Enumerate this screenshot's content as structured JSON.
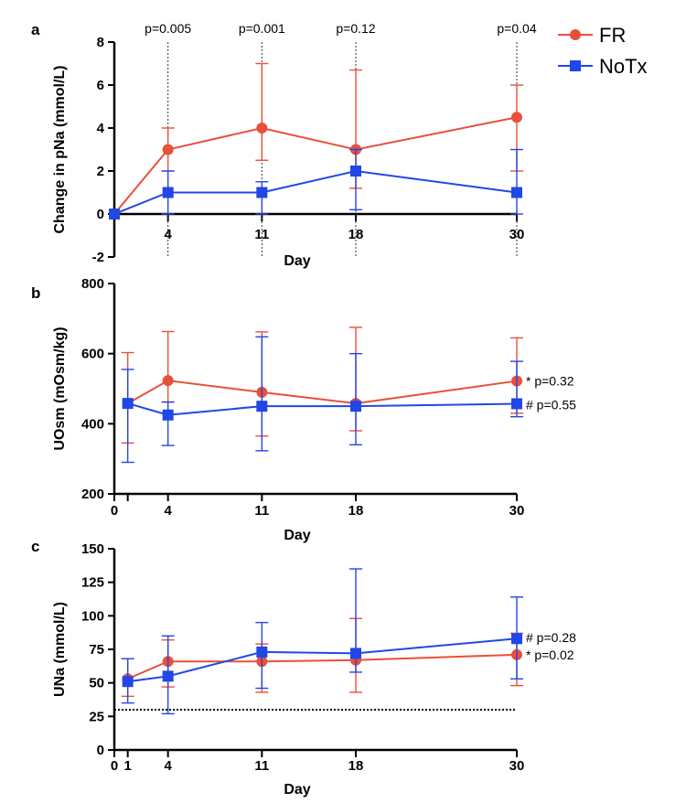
{
  "legend": [
    {
      "name": "FR",
      "color": "#e8503a",
      "marker": "circle"
    },
    {
      "name": "NoTx",
      "color": "#2147e6",
      "marker": "square"
    }
  ],
  "chart_data": [
    {
      "panel": "a",
      "type": "line",
      "xlabel": "Day",
      "ylabel": "Change in pNa (mmol/L)",
      "xlim": [
        0,
        30
      ],
      "ylim": [
        -2,
        8
      ],
      "x_ticks": [
        4,
        11,
        18,
        30
      ],
      "y_ticks": [
        -2,
        0,
        2,
        4,
        6,
        8
      ],
      "x_axis_at": 0,
      "vertical_guides": [
        4,
        11,
        18,
        30
      ],
      "top_labels": [
        {
          "x": 4,
          "text": "p=0.005"
        },
        {
          "x": 11,
          "text": "p=0.001"
        },
        {
          "x": 18,
          "text": "p=0.12"
        },
        {
          "x": 30,
          "text": "p=0.04"
        }
      ],
      "series": [
        {
          "name": "FR",
          "x": [
            0,
            4,
            11,
            18,
            30
          ],
          "y": [
            0,
            3,
            4,
            3,
            4.5
          ],
          "err_low": [
            0,
            2,
            2.5,
            1.2,
            2
          ],
          "err_high": [
            0,
            4,
            7,
            6.7,
            6
          ]
        },
        {
          "name": "NoTx",
          "x": [
            0,
            4,
            11,
            18,
            30
          ],
          "y": [
            0,
            1,
            1,
            2,
            1
          ],
          "err_low": [
            0,
            0,
            0,
            0.2,
            0
          ],
          "err_high": [
            0,
            2,
            1.5,
            3,
            3
          ]
        }
      ]
    },
    {
      "panel": "b",
      "type": "line",
      "xlabel": "Day",
      "ylabel": "UOsm (mOsm/kg)",
      "xlim": [
        0,
        30
      ],
      "ylim": [
        200,
        800
      ],
      "x_ticks": [
        0,
        1,
        4,
        11,
        18,
        30
      ],
      "x_tick_labels": [
        "0",
        "",
        "4",
        "11",
        "18",
        "30"
      ],
      "y_ticks": [
        200,
        400,
        600,
        800
      ],
      "annotations": [
        {
          "text": "* p=0.32",
          "x": 30,
          "y": 522
        },
        {
          "text": "# p=0.55",
          "x": 30,
          "y": 455
        }
      ],
      "series": [
        {
          "name": "FR",
          "x": [
            1,
            4,
            11,
            18,
            30
          ],
          "y": [
            458,
            523,
            490,
            458,
            522
          ],
          "err_low": [
            345,
            462,
            365,
            380,
            430
          ],
          "err_high": [
            603,
            663,
            662,
            675,
            645
          ]
        },
        {
          "name": "NoTx",
          "x": [
            1,
            4,
            11,
            18,
            30
          ],
          "y": [
            458,
            425,
            450,
            450,
            457
          ],
          "err_low": [
            290,
            338,
            323,
            340,
            420
          ],
          "err_high": [
            555,
            462,
            648,
            600,
            578
          ]
        }
      ]
    },
    {
      "panel": "c",
      "type": "line",
      "xlabel": "Day",
      "ylabel": "UNa (mmol/L)",
      "xlim": [
        0,
        30
      ],
      "ylim": [
        0,
        150
      ],
      "x_ticks": [
        0,
        1,
        4,
        11,
        18,
        30
      ],
      "x_tick_labels": [
        "0",
        "1",
        "4",
        "11",
        "18",
        "30"
      ],
      "y_ticks": [
        0,
        25,
        50,
        75,
        100,
        125,
        150
      ],
      "reference_line": 30,
      "annotations": [
        {
          "text": "# p=0.28",
          "x": 30,
          "y": 84
        },
        {
          "text": "* p=0.02",
          "x": 30,
          "y": 71
        }
      ],
      "series": [
        {
          "name": "FR",
          "x": [
            1,
            4,
            11,
            18,
            30
          ],
          "y": [
            53,
            66,
            66,
            67,
            71
          ],
          "err_low": [
            40,
            47,
            43,
            43,
            48
          ],
          "err_high": [
            68,
            82,
            79,
            98,
            87
          ]
        },
        {
          "name": "NoTx",
          "x": [
            1,
            4,
            11,
            18,
            30
          ],
          "y": [
            51,
            55,
            73,
            72,
            83
          ],
          "err_low": [
            35,
            27,
            46,
            58,
            53
          ],
          "err_high": [
            68,
            85,
            95,
            135,
            114
          ]
        }
      ]
    }
  ]
}
